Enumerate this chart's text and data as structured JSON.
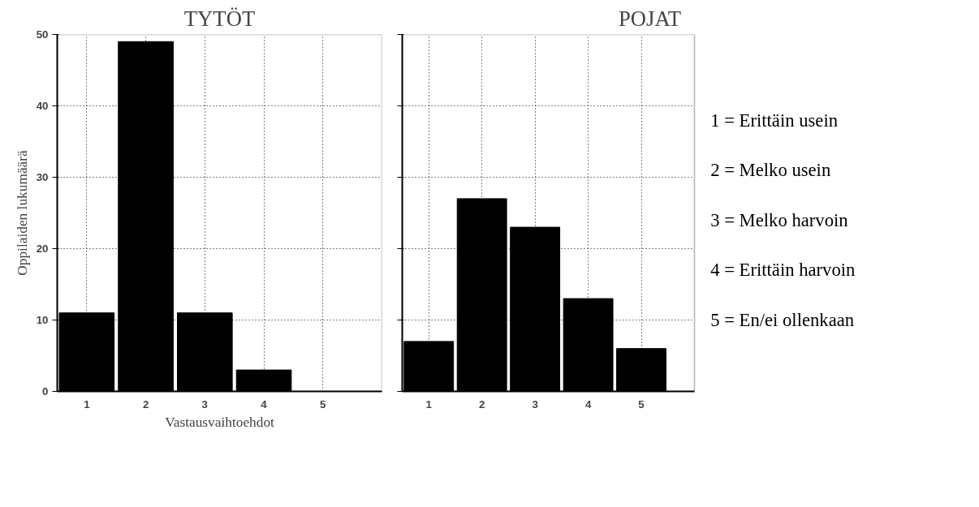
{
  "chart_data": [
    {
      "type": "bar",
      "title": "TYTÖT",
      "xlabel": "Vastausvaihtoehdot",
      "ylabel": "Oppilaiden lukumäärä",
      "categories": [
        "1",
        "2",
        "3",
        "4",
        "5"
      ],
      "series": [
        {
          "color": "#000000",
          "values": [
            11,
            49,
            11,
            3,
            0
          ]
        }
      ],
      "ylim": [
        0,
        50
      ],
      "yticks": [
        0,
        10,
        20,
        30,
        40,
        50
      ],
      "grid": true
    },
    {
      "type": "bar",
      "title": "POJAT",
      "categories": [
        "1",
        "2",
        "3",
        "4",
        "5"
      ],
      "series": [
        {
          "color": "#000000",
          "values": [
            7,
            27,
            23,
            13,
            6
          ]
        }
      ],
      "ylim": [
        0,
        50
      ],
      "yticks": [
        0,
        10,
        20,
        30,
        40,
        50
      ],
      "grid": true,
      "tick_labels": "x",
      "annotations": [
        "1 = Erittäin usein",
        "2 = Melko usein",
        "3 = Melko harvoin",
        "4 = Erittäin harvoin",
        "5 = En/ei ollenkaan"
      ]
    }
  ]
}
